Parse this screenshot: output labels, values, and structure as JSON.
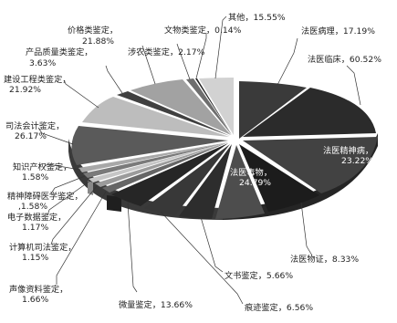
{
  "chart_data": {
    "type": "pie",
    "style": "3d-exploded",
    "slices": [
      {
        "label": "其他",
        "value": "15.55%"
      },
      {
        "label": "法医病理",
        "value": "17.19%"
      },
      {
        "label": "法医临床",
        "value": "60.52%"
      },
      {
        "label": "法医精神病",
        "value": "23.22%"
      },
      {
        "label": "法医物证",
        "value": "8.33%"
      },
      {
        "label": "法医毒物",
        "value": "24.79%"
      },
      {
        "label": "文书鉴定",
        "value": "5.66%"
      },
      {
        "label": "痕迹鉴定",
        "value": "6.56%"
      },
      {
        "label": "微量鉴定",
        "value": "13.66%"
      },
      {
        "label": "声像资料鉴定",
        "value": "1.66%"
      },
      {
        "label": "计算机司法鉴定",
        "value": "1.15%"
      },
      {
        "label": "电子数据鉴定",
        "value": "1.17%"
      },
      {
        "label": "精神障碍医学鉴定",
        "value": "1.58%"
      },
      {
        "label": "知识产权鉴定",
        "value": "1.58%"
      },
      {
        "label": "司法会计鉴定",
        "value": "26.17%"
      },
      {
        "label": "建设工程类鉴定",
        "value": "21.92%"
      },
      {
        "label": "产品质量类鉴定",
        "value": "3.63%"
      },
      {
        "label": "价格类鉴定",
        "value": "21.88%"
      },
      {
        "label": "涉农类鉴定",
        "value": "2.17%"
      },
      {
        "label": "文物类鉴定",
        "value": "0.14%"
      }
    ],
    "colors": {
      "dark": "#2b2b2b",
      "mid": "#4a4a4a",
      "light": "#b9b9b9",
      "white": "#ffffff"
    }
  },
  "labels": {
    "qita": "其他，15.55%",
    "fybl": "法医病理，17.19%",
    "fylc": "法医临床，60.52%",
    "fyjsb_1": "法医精神病，",
    "fyjsb_2": "23.22%",
    "fydw_1": "法医毒物，",
    "fydw_2": "24.79%",
    "fywz": "法医物证，8.33%",
    "wsjd": "文书鉴定，5.66%",
    "hjjd": "痕迹鉴定，6.56%",
    "wljd": "微量鉴定，13.66%",
    "sxzl_1": "声像资料鉴定，",
    "sxzl_2": "1.66%",
    "jsj_1": "计算机司法鉴定，",
    "jsj_2": "1.15%",
    "dzsj_1": "电子数据鉴定，",
    "dzsj_2": "1.17%",
    "jszaa_1": "精神障碍医学鉴定，",
    "jszaa_2": ",1.58%",
    "zscq_1": "知识产权鉴定，",
    "zscq_2": "1.58%",
    "sfkj_1": "司法会计鉴定，",
    "sfkj_2": "26.17%",
    "jsgc_1": "建设工程类鉴定，",
    "jsgc_2": "21.92%",
    "cpzl_1": "产品质量类鉴定，",
    "cpzl_2": "3.63%",
    "jglj_1": "价格类鉴定，",
    "jglj_2": "21.88%",
    "snl": "涉农类鉴定，2.17%",
    "wwl": "文物类鉴定，0.14%"
  }
}
